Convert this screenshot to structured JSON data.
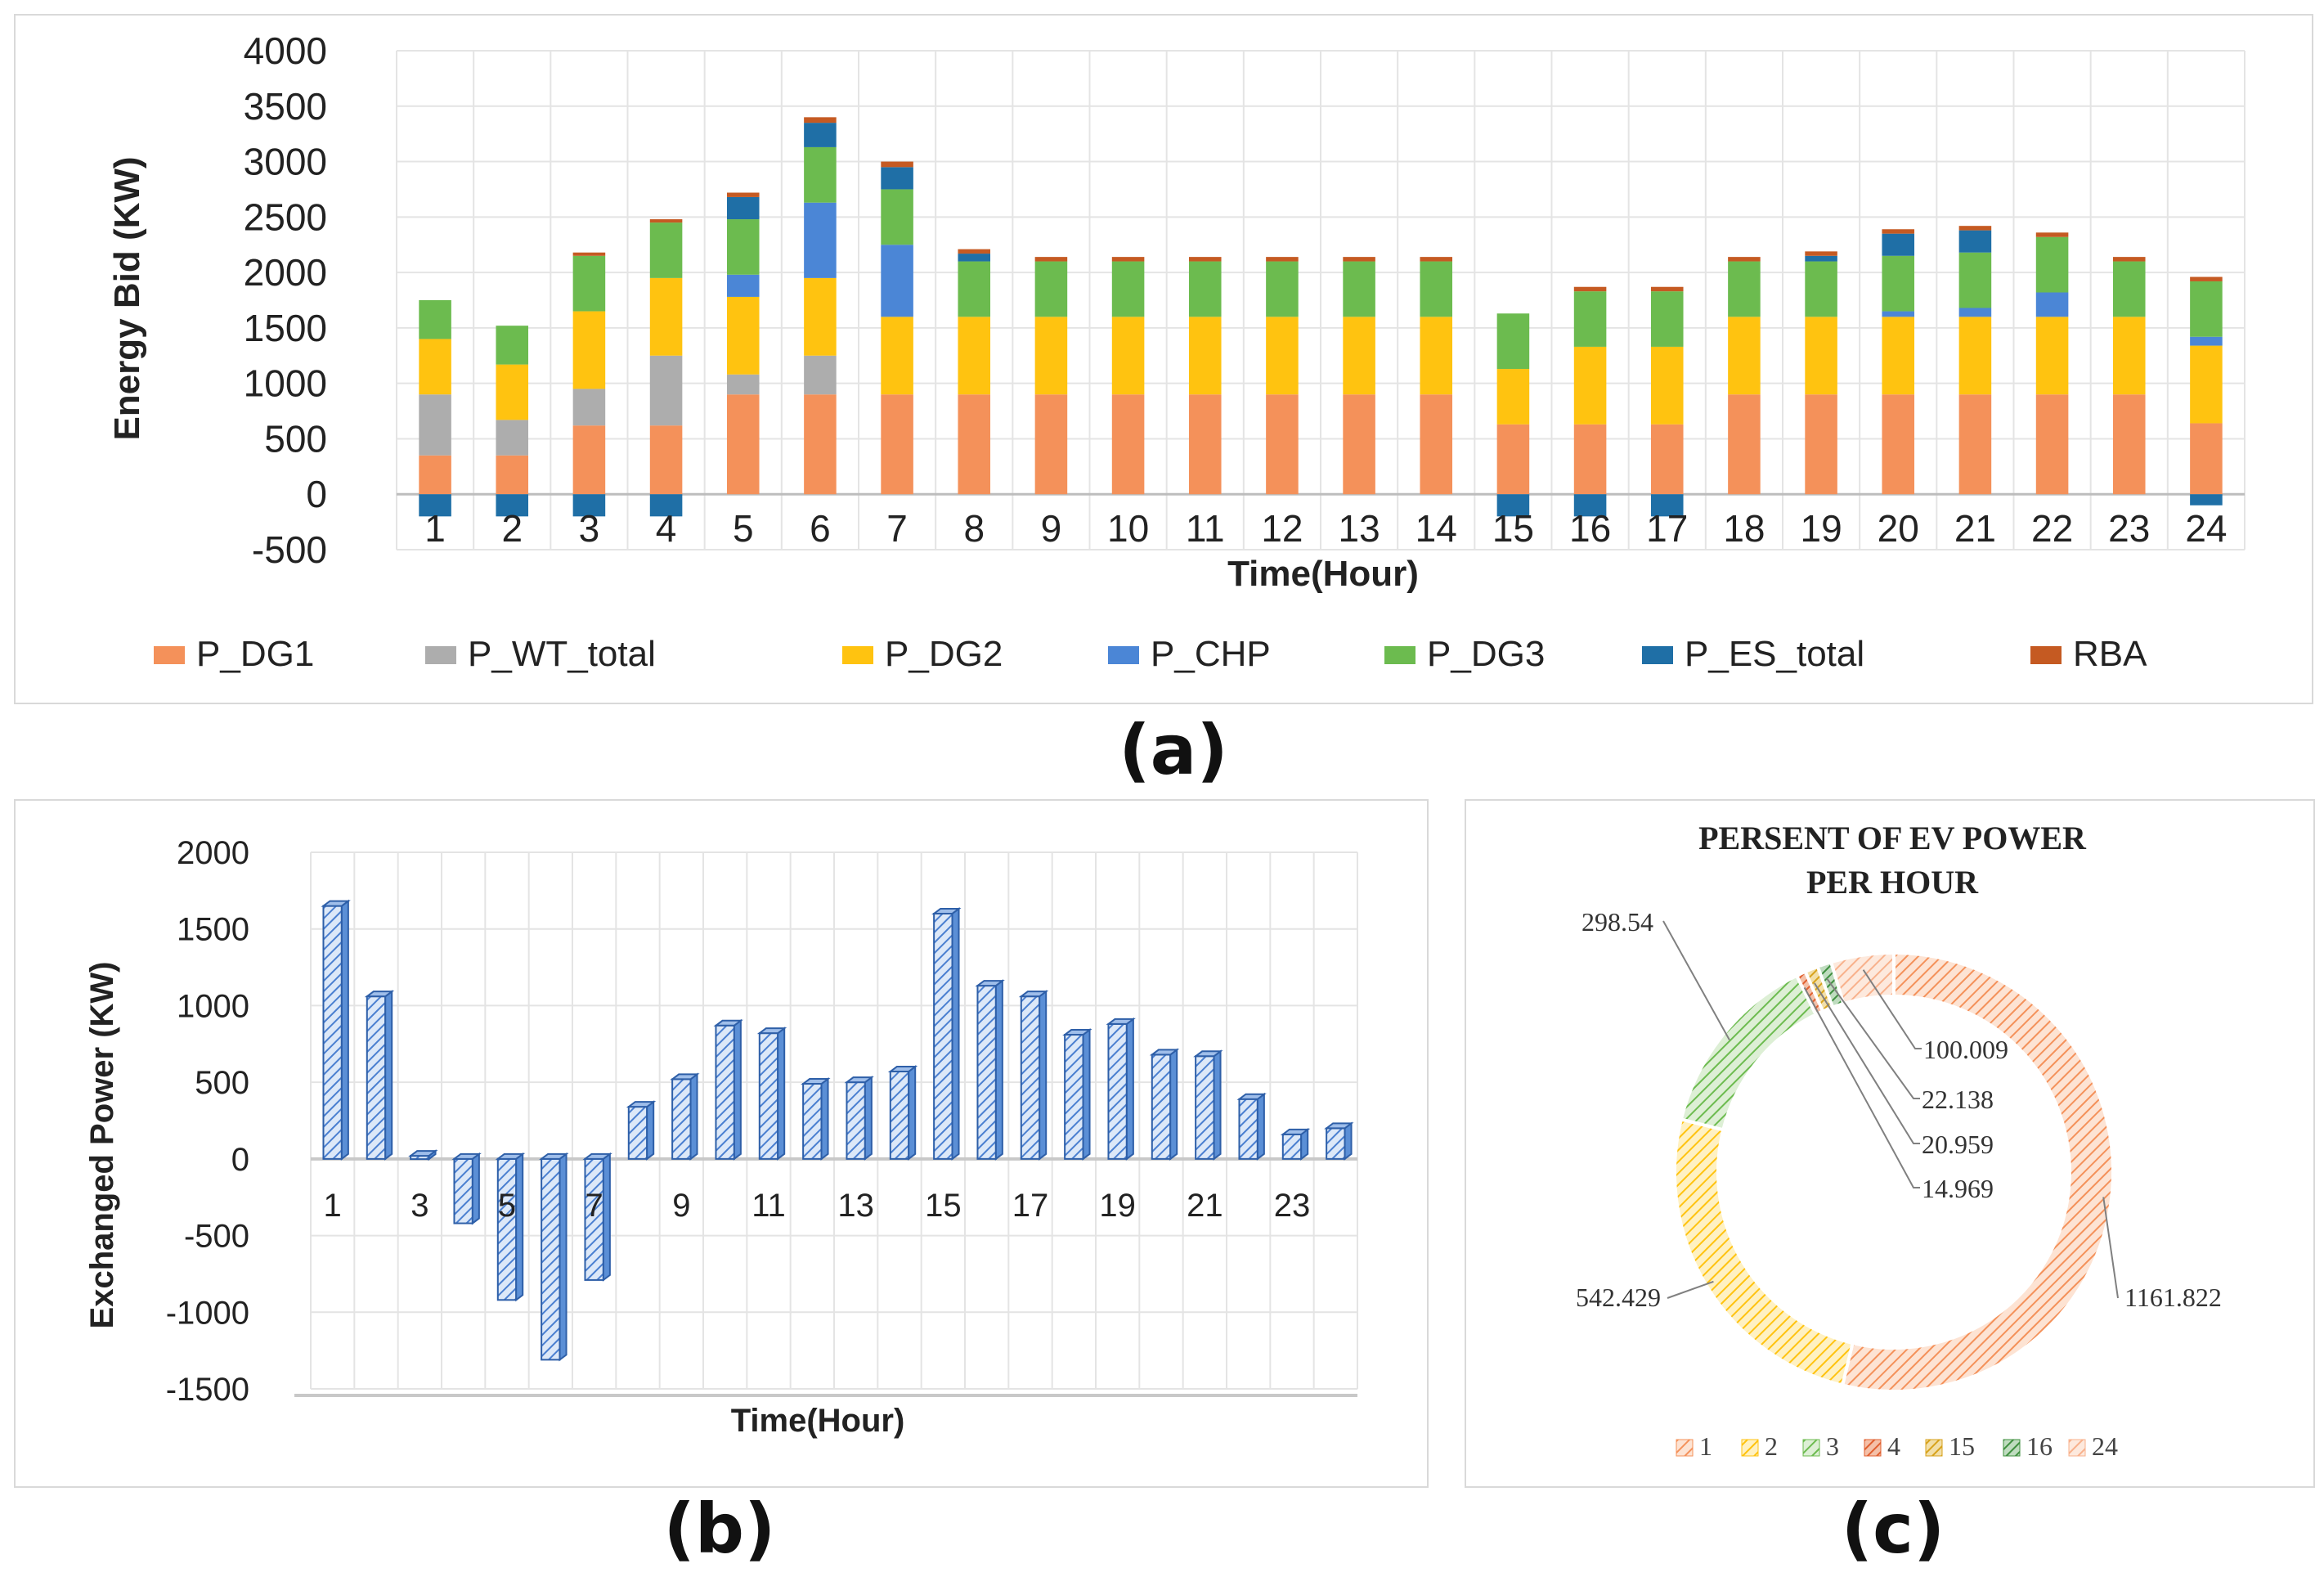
{
  "panel_labels": {
    "a": "(a)",
    "b": "(b)",
    "c": "(c)"
  },
  "colors": {
    "P_DG1": "#F4915A",
    "P_WT_total": "#ADADAD",
    "P_DG2": "#FFC310",
    "P_CHP": "#4B86D6",
    "P_DG3": "#6CBB4F",
    "P_ES_total": "#1F6FA6",
    "RBA": "#C55A22",
    "bar_b_fill": "#5B8FD6",
    "bar_b_stroke": "#2E5FA8"
  },
  "chart_data": [
    {
      "id": "a",
      "type": "bar",
      "stacked": true,
      "title": "",
      "xlabel": "Time(Hour)",
      "ylabel": "Energy Bid (KW)",
      "ylim": [
        -500,
        4000
      ],
      "yticks": [
        "4000",
        "3500",
        "3000",
        "2500",
        "2000",
        "1500",
        "1000",
        "500",
        "0",
        "-500"
      ],
      "ytick_values": [
        4000,
        3500,
        3000,
        2500,
        2000,
        1500,
        1000,
        500,
        0,
        -500
      ],
      "categories": [
        "1",
        "2",
        "3",
        "4",
        "5",
        "6",
        "7",
        "8",
        "9",
        "10",
        "11",
        "12",
        "13",
        "14",
        "15",
        "16",
        "17",
        "18",
        "19",
        "20",
        "21",
        "22",
        "23",
        "24"
      ],
      "series": [
        {
          "name": "P_DG1",
          "values": [
            350,
            350,
            620,
            620,
            900,
            900,
            900,
            900,
            900,
            900,
            900,
            900,
            900,
            900,
            630,
            630,
            630,
            900,
            900,
            900,
            900,
            900,
            900,
            640
          ]
        },
        {
          "name": "P_WT_total",
          "values": [
            550,
            320,
            330,
            630,
            180,
            350,
            0,
            0,
            0,
            0,
            0,
            0,
            0,
            0,
            0,
            0,
            0,
            0,
            0,
            0,
            0,
            0,
            0,
            0
          ]
        },
        {
          "name": "P_DG2",
          "values": [
            500,
            500,
            700,
            700,
            700,
            700,
            700,
            700,
            700,
            700,
            700,
            700,
            700,
            700,
            500,
            700,
            700,
            700,
            700,
            700,
            700,
            700,
            700,
            700
          ]
        },
        {
          "name": "P_CHP",
          "values": [
            0,
            0,
            0,
            0,
            200,
            680,
            650,
            0,
            0,
            0,
            0,
            0,
            0,
            0,
            0,
            0,
            0,
            0,
            0,
            50,
            80,
            220,
            0,
            80
          ]
        },
        {
          "name": "P_DG3",
          "values": [
            350,
            350,
            500,
            500,
            500,
            500,
            500,
            500,
            500,
            500,
            500,
            500,
            500,
            500,
            500,
            500,
            500,
            500,
            500,
            500,
            500,
            500,
            500,
            500
          ]
        },
        {
          "name": "P_ES_total",
          "values": [
            -200,
            -200,
            -200,
            -200,
            200,
            220,
            200,
            70,
            0,
            0,
            0,
            0,
            0,
            0,
            -200,
            -200,
            -200,
            0,
            50,
            200,
            200,
            0,
            0,
            -100
          ]
        },
        {
          "name": "RBA",
          "values": [
            0,
            0,
            30,
            30,
            40,
            50,
            50,
            40,
            40,
            40,
            40,
            40,
            40,
            40,
            0,
            40,
            40,
            40,
            40,
            40,
            40,
            40,
            40,
            40
          ]
        }
      ]
    },
    {
      "id": "b",
      "type": "bar",
      "title": "",
      "xlabel": "Time(Hour)",
      "ylabel": "Exchanged Power (KW)",
      "ylim": [
        -1500,
        2000
      ],
      "yticks": [
        "2000",
        "1500",
        "1000",
        "500",
        "0",
        "-500",
        "-1000",
        "-1500"
      ],
      "ytick_values": [
        2000,
        1500,
        1000,
        500,
        0,
        -500,
        -1000,
        -1500
      ],
      "categories": [
        "1",
        "2",
        "3",
        "4",
        "5",
        "6",
        "7",
        "8",
        "9",
        "10",
        "11",
        "12",
        "13",
        "14",
        "15",
        "16",
        "17",
        "18",
        "19",
        "20",
        "21",
        "22",
        "23",
        "24"
      ],
      "xtick_labels": [
        "1",
        "3",
        "5",
        "7",
        "9",
        "11",
        "13",
        "15",
        "17",
        "19",
        "21",
        "23"
      ],
      "xtick_positions": [
        1,
        3,
        5,
        7,
        9,
        11,
        13,
        15,
        17,
        19,
        21,
        23
      ],
      "values": [
        1650,
        1060,
        20,
        -420,
        -920,
        -1310,
        -790,
        340,
        520,
        870,
        820,
        490,
        500,
        570,
        1600,
        1130,
        1060,
        810,
        880,
        680,
        670,
        390,
        160,
        200
      ]
    },
    {
      "id": "c",
      "type": "pie",
      "donut": true,
      "title_line1": "PERSENT OF EV POWER",
      "title_line2": "PER HOUR",
      "labels": [
        "1",
        "2",
        "3",
        "4",
        "15",
        "16",
        "24"
      ],
      "values": [
        1161.822,
        542.429,
        298.54,
        14.969,
        20.959,
        22.138,
        100.009
      ],
      "value_labels": [
        "1161.822",
        "542.429",
        "298.54",
        "14.969",
        "20.959",
        "22.138",
        "100.009"
      ],
      "colors": [
        "#F4915A",
        "#FFC310",
        "#6CBB4F",
        "#E06030",
        "#D7A21B",
        "#3F8F3F",
        "#F8B18C"
      ]
    }
  ]
}
